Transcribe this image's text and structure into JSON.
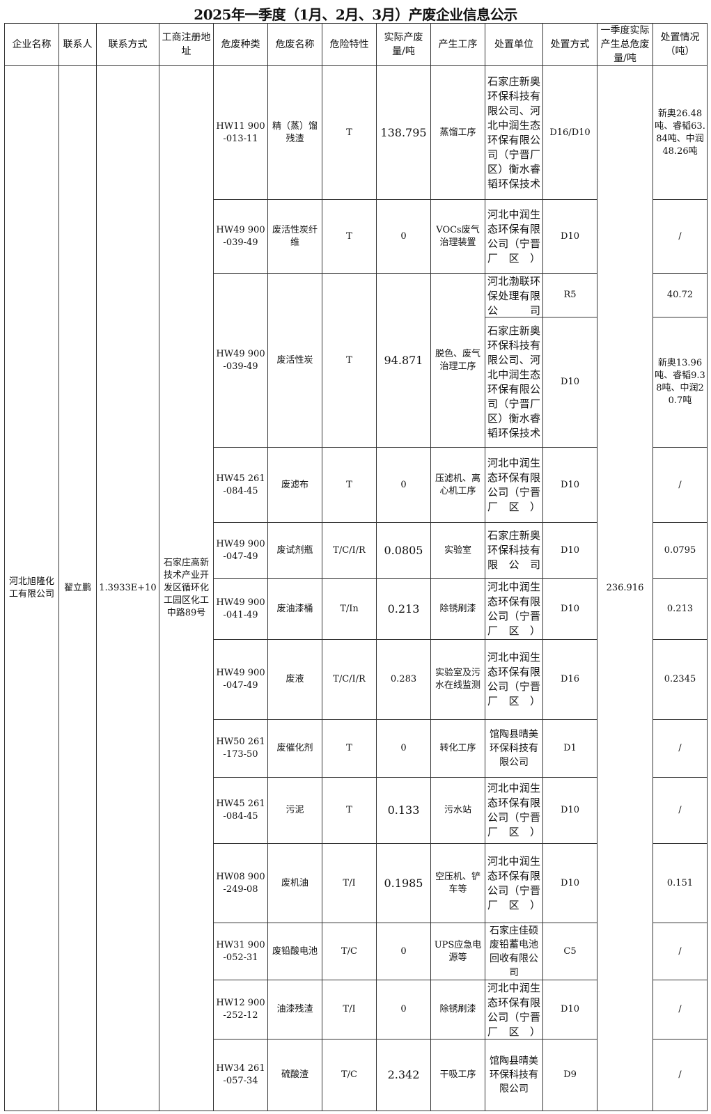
{
  "title": "2025年一季度（1月、2月、3月）产废企业信息公示",
  "headers": [
    "企业名称",
    "联系人",
    "联系方式",
    "工商注册地址",
    "危废种类",
    "危废名称",
    "危险特性",
    "实际产废量/吨",
    "产生工序",
    "处置单位",
    "处置方式",
    "一季度实际产生总危废量/吨",
    "处置情况（吨）"
  ],
  "company": {
    "name": "河北旭隆化工有限公司",
    "contact": "翟立鹏",
    "phone": "1.3933E+10",
    "address": "石家庄高新技术产业开发区循环化工园区化工中路89号",
    "total": "236.916"
  },
  "rows": [
    {
      "code": "HW11 900-013-11",
      "name": "精（蒸）馏残渣",
      "hazard": "T",
      "amount": "138.795",
      "process": "蒸馏工序",
      "units": [
        {
          "unit": "石家庄新奥环保科技有限公司、河北中润生态环保有限公司（宁晋厂区）衡水睿韬环保技术",
          "method": "D16/D10",
          "result": "新奥26.48吨、睿韬63.84吨、中润48.26吨"
        }
      ]
    },
    {
      "code": "HW49 900-039-49",
      "name": "废活性炭纤维",
      "hazard": "T",
      "amount": "0",
      "process": "VOCs废气治理装置",
      "units": [
        {
          "unit": "河北中润生态环保有限公司（宁晋厂区）",
          "method": "D10",
          "result": "/"
        }
      ]
    },
    {
      "code": "HW49 900-039-49",
      "name": "废活性炭",
      "hazard": "T",
      "amount": "94.871",
      "process": "脱色、废气治理工序",
      "units": [
        {
          "unit": "河北渤联环保处理有限公司",
          "method": "R5",
          "result": "40.72"
        },
        {
          "unit": "石家庄新奥环保科技有限公司、河北中润生态环保有限公司（宁晋厂区）衡水睿韬环保技术",
          "method": "D10",
          "result": "新奥13.96吨、睿韬9.38吨、中润20.7吨"
        }
      ]
    },
    {
      "code": "HW45 261-084-45",
      "name": "废滤布",
      "hazard": "T",
      "amount": "0",
      "process": "压滤机、离心机工序",
      "units": [
        {
          "unit": "河北中润生态环保有限公司（宁晋厂区）",
          "method": "D10",
          "result": "/"
        }
      ]
    },
    {
      "code": "HW49 900-047-49",
      "name": "废试剂瓶",
      "hazard": "T/C/I/R",
      "amount": "0.0805",
      "process": "实验室",
      "units": [
        {
          "unit": "石家庄新奥环保科技有限公司",
          "method": "D10",
          "result": "0.0795"
        }
      ]
    },
    {
      "code": "HW49 900-041-49",
      "name": "废油漆桶",
      "hazard": "T/In",
      "amount": "0.213",
      "process": "除锈刷漆",
      "units": [
        {
          "unit": "河北中润生态环保有限公司（宁晋厂区）",
          "method": "D10",
          "result": "0.213"
        }
      ]
    },
    {
      "code": "HW49 900-047-49",
      "name": "废液",
      "hazard": "T/C/I/R",
      "amount": "0.283",
      "process": "实验室及污水在线监测",
      "units": [
        {
          "unit": "河北中润生态环保有限公司（宁晋厂区）",
          "method": "D16",
          "result": "0.2345"
        }
      ]
    },
    {
      "code": "HW50 261-173-50",
      "name": "废催化剂",
      "hazard": "T",
      "amount": "0",
      "process": "转化工序",
      "units": [
        {
          "unit": "馆陶县晴美环保科技有限公司",
          "method": "D1",
          "result": "/",
          "plain": true
        }
      ]
    },
    {
      "code": "HW45 261-084-45",
      "name": "污泥",
      "hazard": "T",
      "amount": "0.133",
      "process": "污水站",
      "units": [
        {
          "unit": "河北中润生态环保有限公司（宁晋厂区）",
          "method": "D10",
          "result": "/"
        }
      ]
    },
    {
      "code": "HW08 900-249-08",
      "name": "废机油",
      "hazard": "T/I",
      "amount": "0.1985",
      "process": "空压机、铲车等",
      "units": [
        {
          "unit": "河北中润生态环保有限公司（宁晋厂区）",
          "method": "D10",
          "result": "0.151"
        }
      ]
    },
    {
      "code": "HW31 900-052-31",
      "name": "废铅酸电池",
      "hazard": "T/C",
      "amount": "0",
      "process": "UPS应急电源等",
      "units": [
        {
          "unit": "石家庄佳硕废铅蓄电池回收有限公司",
          "method": "C5",
          "result": "/",
          "plain": true
        }
      ]
    },
    {
      "code": "HW12 900-252-12",
      "name": "油漆残渣",
      "hazard": "T/I",
      "amount": "0",
      "process": "除锈刷漆",
      "units": [
        {
          "unit": "河北中润生态环保有限公司（宁晋厂区）",
          "method": "D10",
          "result": "/"
        }
      ]
    },
    {
      "code": "HW34 261-057-34",
      "name": "硫酸渣",
      "hazard": "T/C",
      "amount": "2.342",
      "process": "干吸工序",
      "units": [
        {
          "unit": "馆陶县晴美环保科技有限公司",
          "method": "D9",
          "result": "/",
          "plain": true
        }
      ]
    }
  ]
}
